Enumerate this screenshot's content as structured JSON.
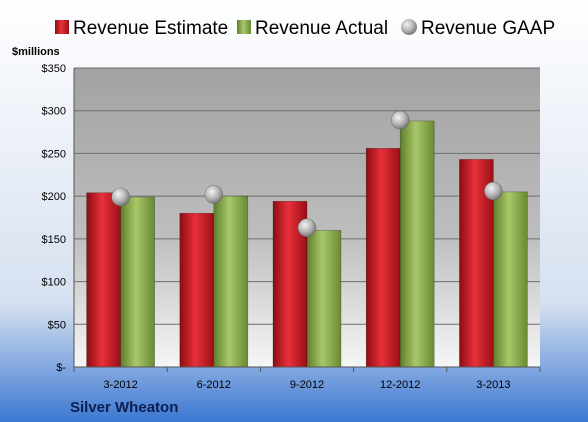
{
  "chart_data": {
    "type": "bar",
    "y_unit_label": "$millions",
    "company": "Silver Wheaton",
    "categories": [
      "3-2012",
      "6-2012",
      "9-2012",
      "12-2012",
      "3-2013"
    ],
    "series": [
      {
        "name": "Revenue Estimate",
        "kind": "bar",
        "color": "#c8141e",
        "values": [
          204,
          180,
          194,
          256,
          243
        ]
      },
      {
        "name": "Revenue Actual",
        "kind": "bar",
        "color": "#8aac4c",
        "values": [
          199,
          200,
          160,
          288,
          205
        ]
      },
      {
        "name": "Revenue GAAP",
        "kind": "marker",
        "color": "#b0b0b0",
        "values": [
          199,
          202,
          163,
          289,
          206
        ]
      }
    ],
    "ylim": [
      0,
      350
    ],
    "y_ticks": [
      0,
      50,
      100,
      150,
      200,
      250,
      300,
      350
    ],
    "y_tick_labels": [
      "$-",
      "$50",
      "$100",
      "$150",
      "$200",
      "$250",
      "$300",
      "$350"
    ],
    "grid": true,
    "legend_position": "top"
  }
}
